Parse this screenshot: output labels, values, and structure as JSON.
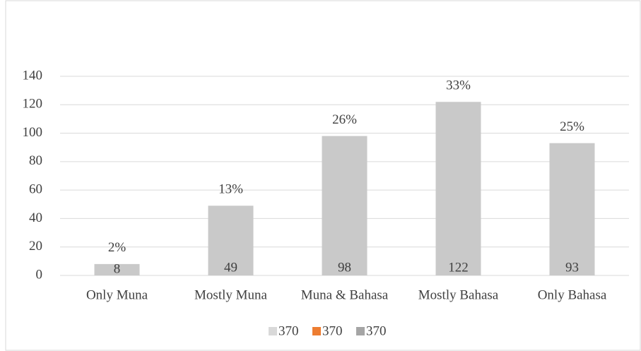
{
  "chart_data": {
    "type": "bar",
    "categories": [
      "Only Muna",
      "Mostly Muna",
      "Muna & Bahasa",
      "Mostly Bahasa",
      "Only Bahasa"
    ],
    "values": [
      8,
      49,
      98,
      122,
      93
    ],
    "percent_labels": [
      "2%",
      "13%",
      "26%",
      "33%",
      "25%"
    ],
    "color": "#c9c9c9",
    "ylim": [
      0,
      140
    ],
    "yticks": [
      0,
      20,
      40,
      60,
      80,
      100,
      120,
      140
    ],
    "grid": true,
    "legend": [
      {
        "name": "370",
        "color": "#d9d9d9"
      },
      {
        "name": "370",
        "color": "#ed7d31"
      },
      {
        "name": "370",
        "color": "#a5a5a5"
      }
    ]
  }
}
